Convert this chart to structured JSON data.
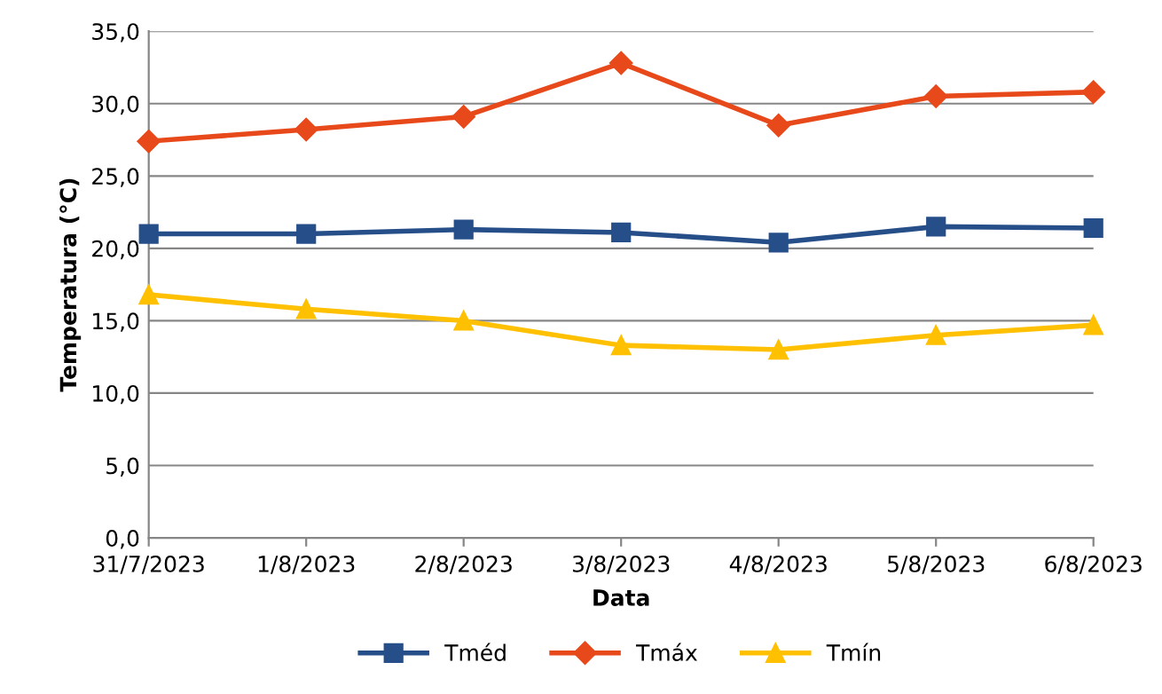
{
  "chart_data": {
    "type": "line",
    "xlabel": "Data",
    "ylabel": "Temperatura (°C)",
    "categories": [
      "31/7/2023",
      "1/8/2023",
      "2/8/2023",
      "3/8/2023",
      "4/8/2023",
      "5/8/2023",
      "6/8/2023"
    ],
    "series": [
      {
        "name": "Tméd",
        "color": "#264f8a",
        "marker": "square",
        "values": [
          21.0,
          21.0,
          21.3,
          21.1,
          20.4,
          21.5,
          21.4
        ]
      },
      {
        "name": "Tmáx",
        "color": "#e8491b",
        "marker": "diamond",
        "values": [
          27.4,
          28.2,
          29.1,
          32.8,
          28.5,
          30.5,
          30.8
        ]
      },
      {
        "name": "Tmín",
        "color": "#ffc000",
        "marker": "triangle",
        "values": [
          16.8,
          15.8,
          15.0,
          13.3,
          13.0,
          14.0,
          14.7
        ]
      }
    ],
    "ylim": [
      0,
      35
    ],
    "yticks": [
      {
        "value": 0,
        "label": "0,0"
      },
      {
        "value": 5,
        "label": "5,0"
      },
      {
        "value": 10,
        "label": "10,0"
      },
      {
        "value": 15,
        "label": "15,0"
      },
      {
        "value": 20,
        "label": "20,0"
      },
      {
        "value": 25,
        "label": "25,0"
      },
      {
        "value": 30,
        "label": "30,0"
      },
      {
        "value": 35,
        "label": "35,0"
      }
    ],
    "grid": "y",
    "legend": "bottom",
    "line_style": "solid"
  }
}
